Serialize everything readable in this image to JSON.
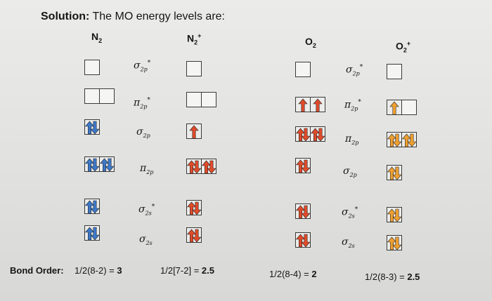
{
  "heading": {
    "solution_label": "Solution:",
    "text": "The MO energy levels are:"
  },
  "molecules": [
    {
      "base": "N",
      "sub": "2",
      "sup": ""
    },
    {
      "base": "N",
      "sub": "2",
      "sup": "+"
    },
    {
      "base": "O",
      "sub": "2",
      "sup": ""
    },
    {
      "base": "O",
      "sub": "2",
      "sup": "+"
    }
  ],
  "orbital_labels": {
    "sigma": "σ",
    "pi": "π",
    "sub_2p": "2p",
    "sub_2s": "2s",
    "star": "*"
  },
  "bond_order": {
    "label": "Bond Order:",
    "n2": {
      "expr": "1/2(8-2) = ",
      "value": "3"
    },
    "n2_plus": {
      "expr": "1/2[7-2] = ",
      "value": "2.5"
    },
    "o2": {
      "expr": "1/2(8-4) = ",
      "value": "2"
    },
    "o2_plus": {
      "expr": "1/2(8-3) = ",
      "value": "2.5"
    }
  },
  "colors": {
    "blue_arrow": "#3d78c8",
    "red_arrow": "#e04b2a",
    "orange_arrow": "#f0a030",
    "box_border": "#3a3a3a"
  },
  "diagrams": {
    "n2": [
      {
        "orbital": "σ2p*",
        "electrons": [
          0
        ],
        "color": "blue"
      },
      {
        "orbital": "π2p*",
        "electrons": [
          0,
          0
        ],
        "color": "blue"
      },
      {
        "orbital": "σ2p",
        "electrons": [
          2
        ],
        "color": "blue"
      },
      {
        "orbital": "π2p",
        "electrons": [
          2,
          2
        ],
        "color": "blue"
      },
      {
        "orbital": "σ2s*",
        "electrons": [
          2
        ],
        "color": "blue"
      },
      {
        "orbital": "σ2s",
        "electrons": [
          2
        ],
        "color": "blue"
      }
    ],
    "n2_plus": [
      {
        "orbital": "σ2p*",
        "electrons": [
          0
        ],
        "color": "red"
      },
      {
        "orbital": "π2p*",
        "electrons": [
          0,
          0
        ],
        "color": "red"
      },
      {
        "orbital": "σ2p",
        "electrons": [
          1
        ],
        "color": "red"
      },
      {
        "orbital": "π2p",
        "electrons": [
          2,
          2
        ],
        "color": "red"
      },
      {
        "orbital": "σ2s*",
        "electrons": [
          2
        ],
        "color": "red"
      },
      {
        "orbital": "σ2s",
        "electrons": [
          2
        ],
        "color": "red"
      }
    ],
    "o2": [
      {
        "orbital": "σ2p*",
        "electrons": [
          0
        ],
        "color": "red"
      },
      {
        "orbital": "π2p*",
        "electrons": [
          1,
          1
        ],
        "color": "red"
      },
      {
        "orbital": "π2p",
        "electrons": [
          2,
          2
        ],
        "color": "red"
      },
      {
        "orbital": "σ2p",
        "electrons": [
          2
        ],
        "color": "red"
      },
      {
        "orbital": "σ2s*",
        "electrons": [
          2
        ],
        "color": "red"
      },
      {
        "orbital": "σ2s",
        "electrons": [
          2
        ],
        "color": "red"
      }
    ],
    "o2_plus": [
      {
        "orbital": "σ2p*",
        "electrons": [
          0
        ],
        "color": "orange"
      },
      {
        "orbital": "π2p*",
        "electrons": [
          1,
          0
        ],
        "color": "orange"
      },
      {
        "orbital": "π2p",
        "electrons": [
          2,
          2
        ],
        "color": "orange"
      },
      {
        "orbital": "σ2p",
        "electrons": [
          2
        ],
        "color": "orange"
      },
      {
        "orbital": "σ2s*",
        "electrons": [
          2
        ],
        "color": "orange"
      },
      {
        "orbital": "σ2s",
        "electrons": [
          2
        ],
        "color": "orange"
      }
    ]
  }
}
